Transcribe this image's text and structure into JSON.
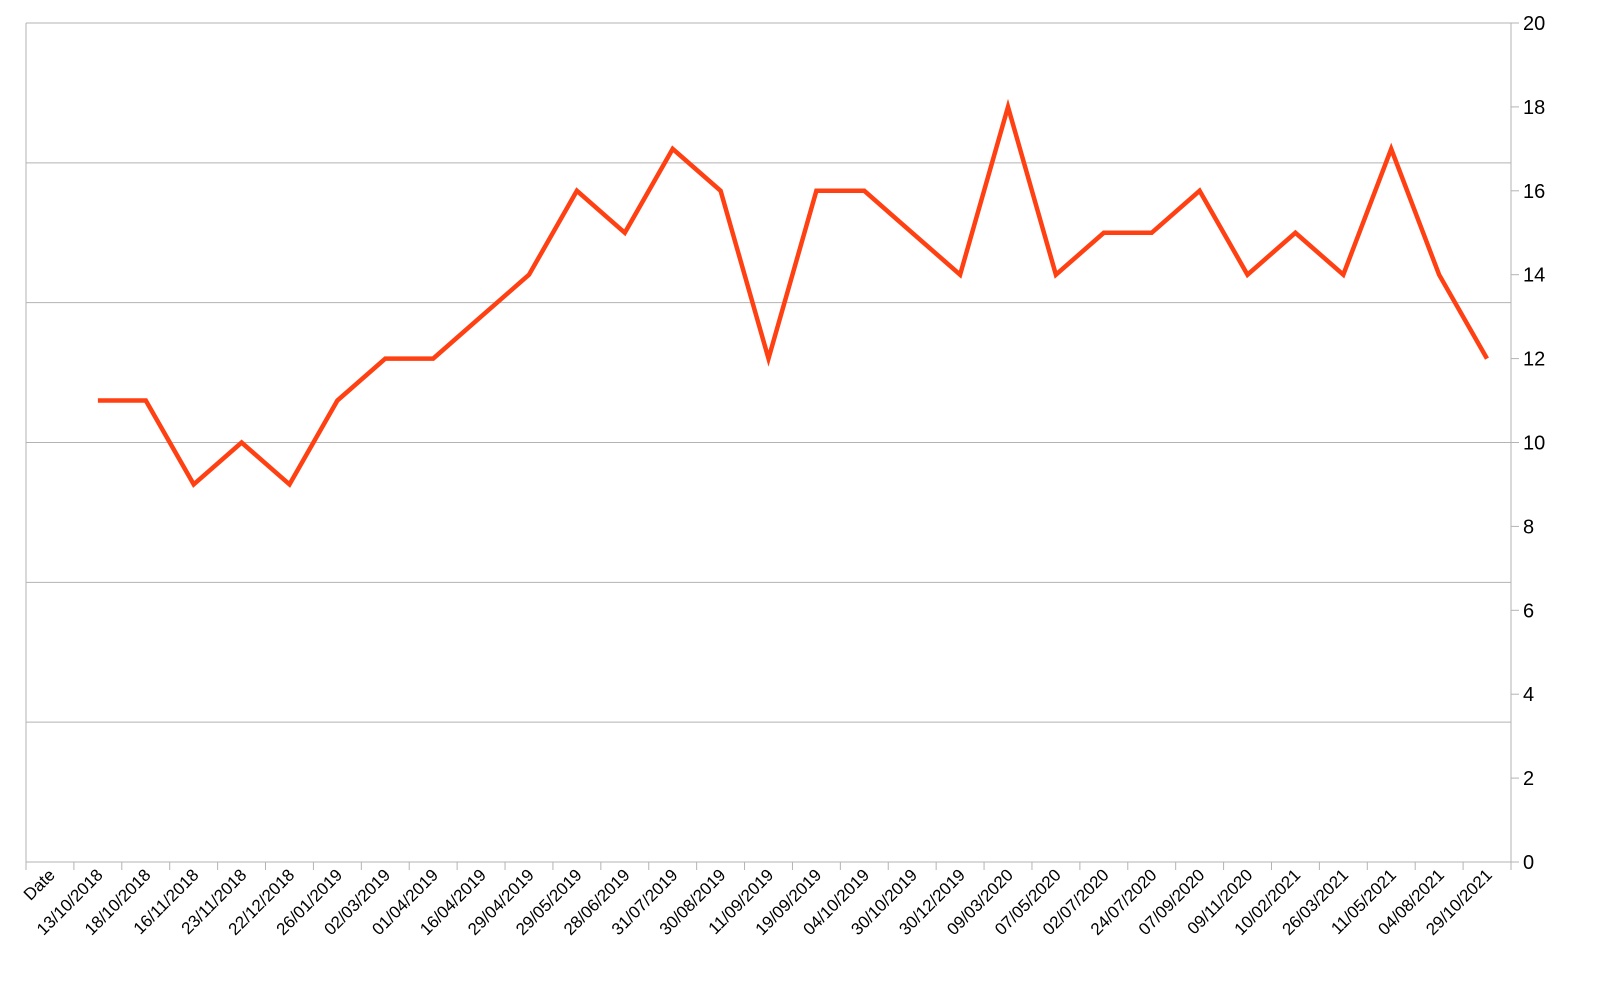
{
  "chart_data": {
    "type": "line",
    "title": "",
    "xlabel": "",
    "ylabel": "",
    "ylim": [
      0,
      20
    ],
    "y_ticks": [
      0,
      2,
      4,
      6,
      8,
      10,
      12,
      14,
      16,
      18,
      20
    ],
    "y_axis_side": "right",
    "grid": "horizontal",
    "legend": "none",
    "line_color": "#ff4013",
    "categories": [
      "Date",
      "13/10/2018",
      "18/10/2018",
      "16/11/2018",
      "23/11/2018",
      "22/12/2018",
      "26/01/2019",
      "02/03/2019",
      "01/04/2019",
      "16/04/2019",
      "29/04/2019",
      "29/05/2019",
      "28/06/2019",
      "31/07/2019",
      "30/08/2019",
      "11/09/2019",
      "19/09/2019",
      "04/10/2019",
      "30/10/2019",
      "30/12/2019",
      "09/03/2020",
      "07/05/2020",
      "02/07/2020",
      "24/07/2020",
      "07/09/2020",
      "09/11/2020",
      "10/02/2021",
      "26/03/2021",
      "11/05/2021",
      "04/08/2021",
      "29/10/2021"
    ],
    "series": [
      {
        "values": [
          null,
          11,
          11,
          9,
          10,
          9,
          11,
          12,
          12,
          13,
          14,
          16,
          15,
          17,
          16,
          12,
          16,
          16,
          15,
          14,
          18,
          14,
          15,
          15,
          16,
          14,
          15,
          14,
          17,
          14,
          12
        ]
      }
    ]
  }
}
